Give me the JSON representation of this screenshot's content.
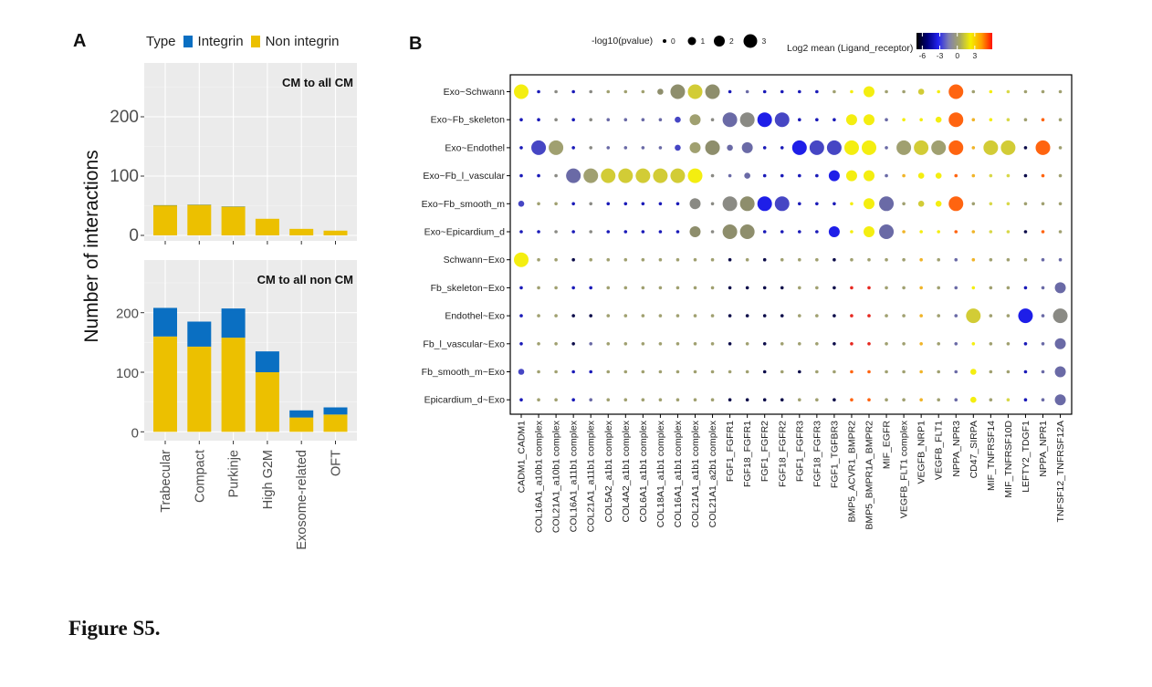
{
  "figure_caption": "Figure S5.",
  "panel_a_label": "A",
  "panel_b_label": "B",
  "colors": {
    "integrin": "#0a6fc2",
    "non_integrin": "#ecc000",
    "panel_bg": "#ebebeb"
  },
  "chart_data": [
    {
      "type": "bar",
      "stacked": true,
      "panel": "A",
      "legend": {
        "title": "Type",
        "entries": [
          "Integrin",
          "Non integrin"
        ],
        "position": "top"
      },
      "ylabel": "Number of interactions",
      "xlabel": "",
      "categories": [
        "Trabecular",
        "Compact",
        "Purkinje",
        "High G2M",
        "Exosome-related",
        "OFT"
      ],
      "facets": [
        {
          "title": "CM to all CM",
          "ylim": [
            0,
            280
          ],
          "yticks": [
            0,
            100,
            200
          ],
          "series": [
            {
              "name": "Non integrin",
              "values": [
                50,
                51,
                48,
                28,
                11,
                8
              ]
            },
            {
              "name": "Integrin",
              "values": [
                1,
                1,
                1,
                0,
                0,
                0
              ]
            }
          ]
        },
        {
          "title": "CM to all non CM",
          "ylim": [
            0,
            280
          ],
          "yticks": [
            0,
            100,
            200
          ],
          "series": [
            {
              "name": "Non integrin",
              "values": [
                160,
                143,
                158,
                100,
                24,
                29
              ]
            },
            {
              "name": "Integrin",
              "values": [
                48,
                42,
                49,
                35,
                12,
                12
              ]
            }
          ]
        }
      ]
    },
    {
      "type": "scatter",
      "subtype": "dotplot",
      "panel": "B",
      "size_legend": {
        "title": "-log10(pvalue)",
        "values": [
          0,
          1,
          2,
          3
        ]
      },
      "color_legend": {
        "title": "Log2 mean (Ligand_receptor)",
        "ticks": [
          -6,
          -3,
          0,
          3
        ],
        "range": [
          -7,
          6
        ],
        "colormap": [
          "#000000",
          "#00007a",
          "#2222ee",
          "#8080b0",
          "#a8a860",
          "#f5f000",
          "#ffa000",
          "#ff1000"
        ]
      },
      "rows": [
        "Exo~Schwann",
        "Exo~Fb_skeleton",
        "Exo~Endothel",
        "Exo~Fb_l_vascular",
        "Exo~Fb_smooth_m",
        "Exo~Epicardium_d",
        "Schwann~Exo",
        "Fb_skeleton~Exo",
        "Endothel~Exo",
        "Fb_l_vascular~Exo",
        "Fb_smooth_m~Exo",
        "Epicardium_d~Exo"
      ],
      "columns": [
        "CADM1_CADM1",
        "COL16A1_a10b1 complex",
        "COL21A1_a10b1 complex",
        "COL16A1_a11b1 complex",
        "COL21A1_a11b1 complex",
        "COL5A2_a1b1 complex",
        "COL4A2_a1b1 complex",
        "COL6A1_a1b1 complex",
        "COL18A1_a1b1 complex",
        "COL16A1_a1b1 complex",
        "COL21A1_a1b1 complex",
        "COL21A1_a2b1 complex",
        "FGF1_FGFR1",
        "FGF18_FGFR1",
        "FGF1_FGFR2",
        "FGF18_FGFR2",
        "FGF1_FGFR3",
        "FGF18_FGFR3",
        "FGF1_TGFBR3",
        "BMP5_ACVR1_BMPR2",
        "BMP5_BMPR1A_BMPR2",
        "MIF_EGFR",
        "VEGFB_FLT1 complex",
        "VEGFB_NRP1",
        "VEGFB_FLT1",
        "NPPA_NPR3",
        "CD47_SIRPA",
        "MIF_TNFRSF14",
        "MIF_TNFRSF10D",
        "LEFTY2_TDGF1",
        "NPPA_NPR1",
        "TNFSF12_TNFRSF12A"
      ],
      "palette": {
        "Y": "#f4ee10",
        "YG": "#d2cc36",
        "LY": "#d8d848",
        "OL": "#a0a070",
        "GR": "#8e8e6c",
        "GY": "#8a8a84",
        "PB": "#6a6aa6",
        "MB": "#4646c4",
        "B": "#1e1ee8",
        "DB": "#1a1ab8",
        "NV": "#0c0c4a",
        "OR": "#ff6410",
        "RD": "#e62820",
        "OY": "#f0b428"
      },
      "cells": [
        [
          "Y3",
          "DB0",
          "GY0",
          "DB0",
          "GY0",
          "OL0",
          "OL0",
          "OL0",
          "GR1",
          "GR3",
          "YG3",
          "GR3",
          "DB0",
          "PB0",
          "DB0",
          "DB0",
          "DB0",
          "DB0",
          "OL0",
          "Y0",
          "Y2",
          "OL0",
          "OL0",
          "YG1",
          "Y0",
          "OR3",
          "OL0",
          "Y0",
          "LY0",
          "OL0",
          "OL0",
          "OL0"
        ],
        [
          "DB0",
          "DB0",
          "GY0",
          "DB0",
          "GY0",
          "PB0",
          "PB0",
          "PB0",
          "PB0",
          "MB1",
          "OL2",
          "GY0",
          "PB3",
          "GY3",
          "B3",
          "MB3",
          "DB0",
          "DB0",
          "DB0",
          "Y2",
          "Y2",
          "PB0",
          "Y0",
          "Y0",
          "Y1",
          "OR3",
          "OY0",
          "Y0",
          "LY0",
          "OL0",
          "OR0",
          "OL0"
        ],
        [
          "DB0",
          "MB3",
          "OL3",
          "DB0",
          "GY0",
          "PB0",
          "PB0",
          "PB0",
          "PB0",
          "MB1",
          "OL2",
          "GR3",
          "PB1",
          "PB2",
          "DB0",
          "DB0",
          "B3",
          "MB3",
          "MB3",
          "Y3",
          "Y3",
          "PB0",
          "OL3",
          "YG3",
          "OL3",
          "OR3",
          "OY0",
          "YG3",
          "YG3",
          "NV0",
          "OR3",
          "OL0"
        ],
        [
          "DB0",
          "DB0",
          "GY0",
          "PB3",
          "OL3",
          "YG3",
          "YG3",
          "YG3",
          "YG3",
          "YG3",
          "Y3",
          "GY0",
          "PB0",
          "PB1",
          "DB0",
          "DB0",
          "DB0",
          "DB0",
          "B2",
          "Y2",
          "Y2",
          "PB0",
          "OY0",
          "Y1",
          "Y1",
          "OR0",
          "OY0",
          "LY0",
          "LY0",
          "NV0",
          "OR0",
          "OL0"
        ],
        [
          "MB1",
          "OL0",
          "OL0",
          "DB0",
          "GY0",
          "DB0",
          "DB0",
          "DB0",
          "DB0",
          "DB0",
          "GY2",
          "GY0",
          "GY3",
          "GR3",
          "B3",
          "MB3",
          "DB0",
          "DB0",
          "DB0",
          "Y0",
          "Y2",
          "PB3",
          "OL0",
          "YG1",
          "Y1",
          "OR3",
          "OL0",
          "LY0",
          "LY0",
          "OL0",
          "OL0",
          "OL0"
        ],
        [
          "DB0",
          "DB0",
          "GY0",
          "DB0",
          "GY0",
          "DB0",
          "DB0",
          "DB0",
          "DB0",
          "DB0",
          "GR2",
          "GY0",
          "GR3",
          "GR3",
          "DB0",
          "DB0",
          "DB0",
          "DB0",
          "B2",
          "Y0",
          "Y2",
          "PB3",
          "OY0",
          "Y0",
          "Y0",
          "OR0",
          "OY0",
          "LY0",
          "LY0",
          "NV0",
          "OR0",
          "OL0"
        ],
        [
          "Y3",
          "OL0",
          "OL0",
          "NV0",
          "OL0",
          "OL0",
          "OL0",
          "OL0",
          "OL0",
          "OL0",
          "OL0",
          "OL0",
          "NV0",
          "OL0",
          "NV0",
          "OL0",
          "OL0",
          "OL0",
          "NV0",
          "OL0",
          "OL0",
          "OL0",
          "OL0",
          "OY0",
          "OL0",
          "PB0",
          "OY0",
          "OL0",
          "OL0",
          "OL0",
          "PB0",
          "PB0"
        ],
        [
          "DB0",
          "OL0",
          "OL0",
          "DB0",
          "DB0",
          "OL0",
          "OL0",
          "OL0",
          "OL0",
          "OL0",
          "OL0",
          "OL0",
          "NV0",
          "NV0",
          "NV0",
          "NV0",
          "OL0",
          "OL0",
          "NV0",
          "RD0",
          "RD0",
          "OL0",
          "OL0",
          "OY0",
          "OL0",
          "PB0",
          "Y0",
          "OL0",
          "OL0",
          "DB0",
          "PB0",
          "PB2"
        ],
        [
          "DB0",
          "OL0",
          "OL0",
          "NV0",
          "NV0",
          "OL0",
          "OL0",
          "OL0",
          "OL0",
          "OL0",
          "OL0",
          "OL0",
          "NV0",
          "NV0",
          "NV0",
          "NV0",
          "OL0",
          "OL0",
          "NV0",
          "RD0",
          "RD0",
          "OL0",
          "OL0",
          "OY0",
          "OL0",
          "PB0",
          "YG3",
          "OL0",
          "OL0",
          "B3",
          "PB0",
          "GY3"
        ],
        [
          "DB0",
          "OL0",
          "OL0",
          "NV0",
          "PB0",
          "OL0",
          "OL0",
          "OL0",
          "OL0",
          "OL0",
          "OL0",
          "OL0",
          "NV0",
          "OL0",
          "NV0",
          "OL0",
          "OL0",
          "OL0",
          "NV0",
          "RD0",
          "RD0",
          "OL0",
          "OL0",
          "OY0",
          "OL0",
          "PB0",
          "Y0",
          "OL0",
          "OL0",
          "DB0",
          "PB0",
          "PB2"
        ],
        [
          "MB1",
          "OL0",
          "OL0",
          "DB0",
          "DB0",
          "OL0",
          "OL0",
          "OL0",
          "OL0",
          "OL0",
          "OL0",
          "OL0",
          "OL0",
          "OL0",
          "NV0",
          "OL0",
          "NV0",
          "OL0",
          "OL0",
          "OR0",
          "OR0",
          "OL0",
          "OL0",
          "OY0",
          "OL0",
          "PB0",
          "Y1",
          "OL0",
          "OL0",
          "DB0",
          "PB0",
          "PB2"
        ],
        [
          "DB0",
          "OL0",
          "OL0",
          "DB0",
          "PB0",
          "OL0",
          "OL0",
          "OL0",
          "OL0",
          "OL0",
          "OL0",
          "OL0",
          "NV0",
          "NV0",
          "NV0",
          "NV0",
          "OL0",
          "OL0",
          "NV0",
          "OR0",
          "OR0",
          "OL0",
          "OL0",
          "OY0",
          "OL0",
          "PB0",
          "Y1",
          "OL0",
          "LY0",
          "DB0",
          "PB0",
          "PB2"
        ]
      ]
    }
  ]
}
